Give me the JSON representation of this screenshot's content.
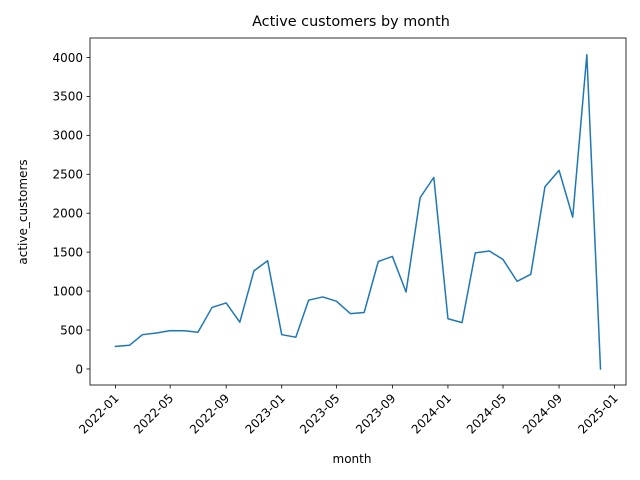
{
  "chart_data": {
    "type": "line",
    "title": "Active customers by month",
    "xlabel": "month",
    "ylabel": "active_customers",
    "x": [
      "2022-01",
      "2022-02",
      "2022-03",
      "2022-04",
      "2022-05",
      "2022-06",
      "2022-07",
      "2022-08",
      "2022-09",
      "2022-10",
      "2022-11",
      "2022-12",
      "2023-01",
      "2023-02",
      "2023-03",
      "2023-04",
      "2023-05",
      "2023-06",
      "2023-07",
      "2023-08",
      "2023-09",
      "2023-10",
      "2023-11",
      "2023-12",
      "2024-01",
      "2024-02",
      "2024-03",
      "2024-04",
      "2024-05",
      "2024-06",
      "2024-07",
      "2024-08",
      "2024-09",
      "2024-10",
      "2024-11",
      "2024-12"
    ],
    "series": [
      {
        "color": "#1f77b4",
        "values": [
          290,
          305,
          440,
          462,
          492,
          490,
          472,
          790,
          848,
          600,
          1260,
          1390,
          440,
          408,
          883,
          925,
          870,
          710,
          725,
          1380,
          1445,
          988,
          2200,
          2460,
          645,
          595,
          1490,
          1515,
          1405,
          1125,
          1215,
          2340,
          2550,
          1950,
          4035,
          0
        ]
      }
    ],
    "xticks": [
      "2022-01",
      "2022-05",
      "2022-09",
      "2023-01",
      "2023-05",
      "2023-09",
      "2024-01",
      "2024-05",
      "2024-09",
      "2025-01"
    ],
    "yticks": [
      0,
      500,
      1000,
      1500,
      2000,
      2500,
      3000,
      3500,
      4000
    ],
    "ylim": [
      -206,
      4250
    ],
    "xlim": [
      "2021-11-06",
      "2025-01-26"
    ],
    "grid": false,
    "legend": "none"
  }
}
